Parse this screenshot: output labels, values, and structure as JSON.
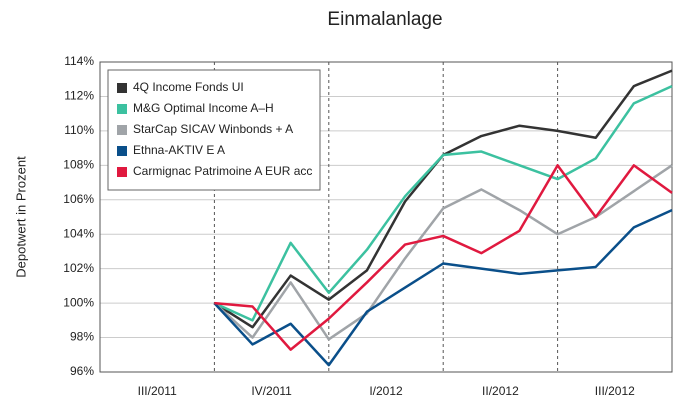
{
  "chart_data": {
    "type": "line",
    "title": "Einmalanlage",
    "y_label": "Depotwert in Prozent",
    "categories": [
      null,
      "III/2011",
      null,
      null,
      "IV/2011",
      null,
      null,
      "I/2012",
      null,
      null,
      "II/2012",
      null,
      null,
      "III/2012",
      null
    ],
    "series": [
      {
        "name": "4Q Income Fonds UI",
        "color": "#333333",
        "values": [
          null,
          null,
          100,
          98.6,
          101.6,
          100.2,
          101.9,
          105.9,
          108.6,
          109.7,
          110.3,
          110.0,
          109.6,
          112.6,
          113.5
        ]
      },
      {
        "name": "M&G Optimal Income A–H",
        "color": "#3cc1a0",
        "values": [
          null,
          null,
          100,
          99.0,
          103.5,
          100.6,
          103.1,
          106.2,
          108.6,
          108.8,
          108.0,
          107.2,
          108.4,
          111.6,
          112.6
        ]
      },
      {
        "name": "StarCap SICAV Winbonds + A",
        "color": "#a0a4a8",
        "values": [
          null,
          null,
          100,
          98.0,
          101.2,
          97.9,
          99.4,
          102.6,
          105.5,
          106.6,
          105.4,
          104.0,
          105.0,
          106.5,
          108.0
        ]
      },
      {
        "name": "Ethna-AKTIV E A",
        "color": "#0a4f8a",
        "values": [
          null,
          null,
          100,
          97.6,
          98.8,
          96.4,
          99.5,
          100.9,
          102.3,
          102.0,
          101.7,
          101.9,
          102.1,
          104.4,
          105.4
        ]
      },
      {
        "name": "Carmignac Patrimoine A EUR acc",
        "color": "#e0193f",
        "values": [
          null,
          null,
          100,
          99.8,
          97.3,
          99.1,
          101.2,
          103.4,
          103.9,
          102.9,
          104.2,
          108.0,
          105.0,
          108.0,
          106.4
        ]
      }
    ],
    "ylim": [
      96,
      114
    ],
    "yticks": [
      {
        "value": 96,
        "label": "96%"
      },
      {
        "value": 98,
        "label": "98%"
      },
      {
        "value": 100,
        "label": "100%"
      },
      {
        "value": 102,
        "label": "102%"
      },
      {
        "value": 104,
        "label": "104%"
      },
      {
        "value": 106,
        "label": "106%"
      },
      {
        "value": 108,
        "label": "108%"
      },
      {
        "value": 110,
        "label": "110%"
      },
      {
        "value": 112,
        "label": "112%"
      },
      {
        "value": 114,
        "label": "114%"
      }
    ],
    "grid": true,
    "legend": "top-left"
  }
}
